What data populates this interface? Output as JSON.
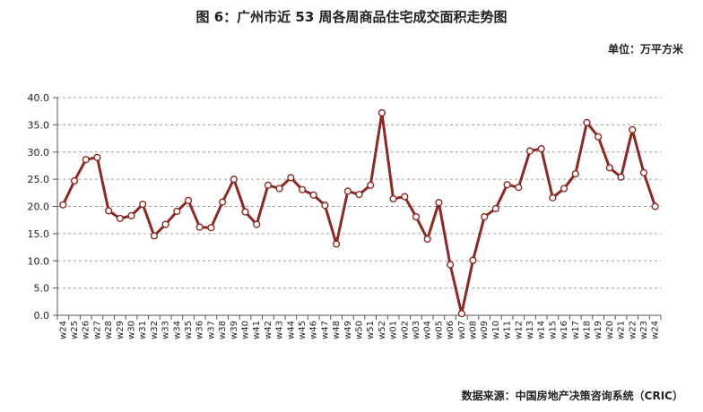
{
  "title": "图 6：广州市近 53 周各周商品住宅成交面积走势图",
  "unit_label": "单位：万平方米",
  "source_label": "数据来源：中国房地产决策咨询系统（CRIC）",
  "colors": {
    "line": "#8B2A25",
    "marker_fill": "#ffffff",
    "grid": "#a0a0a0"
  },
  "chart_data": {
    "type": "line",
    "title": "图 6：广州市近 53 周各周商品住宅成交面积走势图",
    "xlabel": "",
    "ylabel": "单位：万平方米",
    "ylim": [
      0,
      40
    ],
    "yticks": [
      "0.0",
      "5.0",
      "10.0",
      "15.0",
      "20.0",
      "25.0",
      "30.0",
      "35.0",
      "40.0"
    ],
    "grid": "horizontal dashed",
    "categories": [
      "w24",
      "w25",
      "w26",
      "w27",
      "w28",
      "w29",
      "w30",
      "w31",
      "w32",
      "w33",
      "w34",
      "w35",
      "w36",
      "w37",
      "w38",
      "w39",
      "w40",
      "w41",
      "w42",
      "w43",
      "w44",
      "w45",
      "w46",
      "w47",
      "w48",
      "w49",
      "w50",
      "w51",
      "w52",
      "w01",
      "w02",
      "w03",
      "w04",
      "w05",
      "w06",
      "w07",
      "w08",
      "w09",
      "w10",
      "w11",
      "w12",
      "w13",
      "w14",
      "w15",
      "w16",
      "w17",
      "w18",
      "w19",
      "w20",
      "w21",
      "w22",
      "w23",
      "w24"
    ],
    "series": [
      {
        "values": [
          20.3,
          24.7,
          28.6,
          29.0,
          19.2,
          17.8,
          18.3,
          20.4,
          14.6,
          16.7,
          19.1,
          21.1,
          16.2,
          16.1,
          20.8,
          25.0,
          19.0,
          16.7,
          23.9,
          23.3,
          25.3,
          23.1,
          22.1,
          20.2,
          13.1,
          22.8,
          22.2,
          23.9,
          37.2,
          21.4,
          21.8,
          18.1,
          14.0,
          20.7,
          9.3,
          0.3,
          10.1,
          18.1,
          19.6,
          24.0,
          23.5,
          30.2,
          30.6,
          21.6,
          23.3,
          26.0,
          35.4,
          32.8,
          27.1,
          25.4,
          34.1,
          26.2,
          20.0
        ]
      }
    ]
  }
}
